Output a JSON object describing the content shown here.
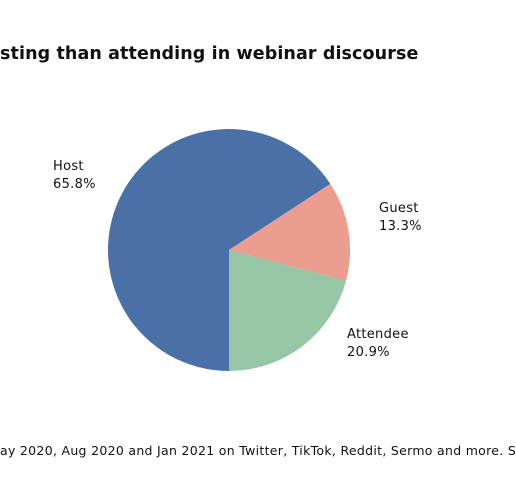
{
  "title_text": "sting than attending in webinar discourse",
  "footnote_text": "ay 2020, Aug 2020 and Jan 2021 on Twitter, TikTok, Reddit, Sermo and more. S",
  "chart_data": {
    "type": "pie",
    "title": "sting than attending in webinar discourse",
    "slices": [
      {
        "label": "Host",
        "value": 65.8,
        "display": "65.8%",
        "color": "#4a70a8"
      },
      {
        "label": "Guest",
        "value": 13.3,
        "display": "13.3%",
        "color": "#eb9d8f"
      },
      {
        "label": "Attendee",
        "value": 20.9,
        "display": "20.9%",
        "color": "#96c6a5"
      }
    ]
  }
}
